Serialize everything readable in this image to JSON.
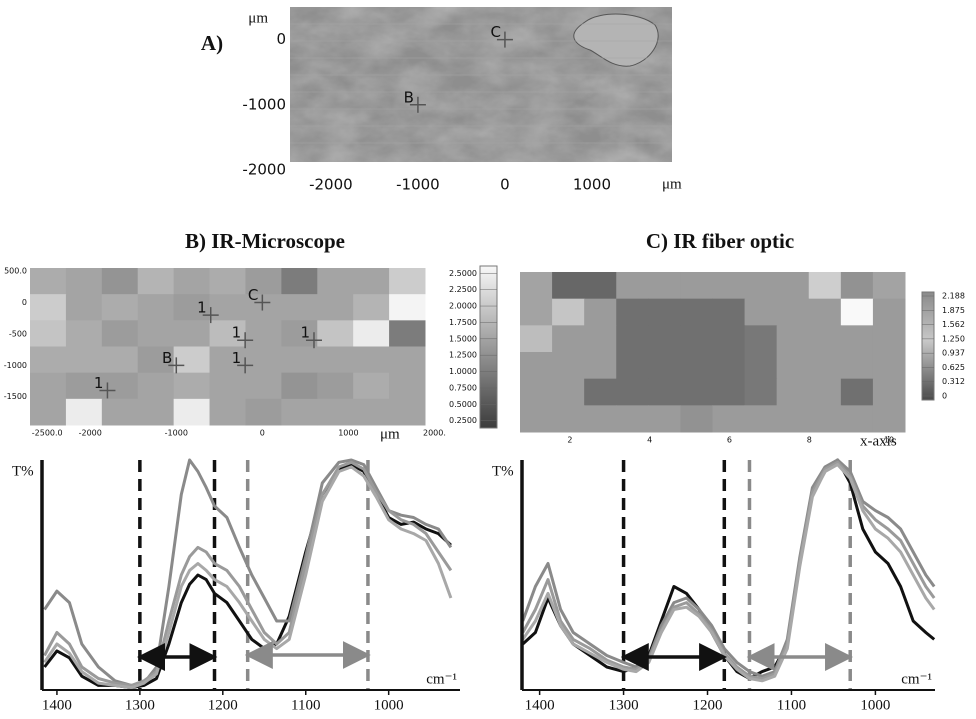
{
  "chart_data": [
    {
      "type": "image",
      "title": "A)",
      "xlabel": "μm",
      "ylabel": "μm",
      "xlim": [
        -2470,
        1920
      ],
      "ylim": [
        -2000,
        500
      ],
      "xticks": [
        -2000,
        -1000,
        0,
        1000
      ],
      "yticks": [
        0,
        -1000,
        -2000
      ],
      "markers": [
        {
          "label": "C",
          "x": 0,
          "y": 0
        },
        {
          "label": "B",
          "x": -1000,
          "y": -1000
        }
      ]
    },
    {
      "type": "heatmap",
      "title": "B) IR-Microscope",
      "xlabel": "μm",
      "xlim": [
        -2700,
        1890
      ],
      "ylim": [
        -1950,
        550
      ],
      "xticks": [
        {
          "value": -2500,
          "label": "-2500.0"
        },
        -2000,
        -1000,
        0,
        1000,
        {
          "value": 2000,
          "label": "2000."
        }
      ],
      "yticks": [
        {
          "value": 500,
          "label": "500.0"
        },
        0,
        -500,
        -1000,
        -1500
      ],
      "colormap": [
        "#3c3c3c",
        "#f8f8f8"
      ],
      "clim": [
        0.2,
        2.55
      ],
      "colorbar_ticks": [
        {
          "value": 2.5,
          "label": "2.5000"
        },
        {
          "value": 2.25,
          "label": "2.2500"
        },
        {
          "value": 2.0,
          "label": "2.0000"
        },
        {
          "value": 1.75,
          "label": "1.7500"
        },
        {
          "value": 1.5,
          "label": "1.5000"
        },
        {
          "value": 1.25,
          "label": "1.2500"
        },
        {
          "value": 1.0,
          "label": "1.0000"
        },
        {
          "value": 0.75,
          "label": "0.7500"
        },
        {
          "value": 0.5,
          "label": "0.5000"
        },
        {
          "value": 0.25,
          "label": "0.2500"
        }
      ],
      "values": [
        [
          1.6,
          1.5,
          1.3,
          1.7,
          1.5,
          1.6,
          1.4,
          1.0,
          1.5,
          1.5,
          2.0
        ],
        [
          2.0,
          1.5,
          1.6,
          1.5,
          1.4,
          1.5,
          1.5,
          1.5,
          1.5,
          1.7,
          2.5
        ],
        [
          1.9,
          1.6,
          1.4,
          1.5,
          1.5,
          1.8,
          1.5,
          1.4,
          1.9,
          2.4,
          1.0
        ],
        [
          1.6,
          1.6,
          1.6,
          1.4,
          2.0,
          1.5,
          1.5,
          1.5,
          1.5,
          1.5,
          1.5
        ],
        [
          1.5,
          1.4,
          1.4,
          1.5,
          1.6,
          1.5,
          1.5,
          1.3,
          1.4,
          1.6,
          1.5
        ],
        [
          1.5,
          2.4,
          1.5,
          1.5,
          2.4,
          1.5,
          1.4,
          1.5,
          1.5,
          1.5,
          1.5
        ]
      ],
      "markers": [
        {
          "label": "C",
          "x": 0,
          "y": 0
        },
        {
          "label": "B",
          "x": -1000,
          "y": -1000
        },
        {
          "label": "1",
          "x": -600,
          "y": -200
        },
        {
          "label": "1",
          "x": -200,
          "y": -600
        },
        {
          "label": "1",
          "x": -200,
          "y": -1000
        },
        {
          "label": "1",
          "x": 600,
          "y": -600
        },
        {
          "label": "1",
          "x": -1800,
          "y": -1400
        }
      ]
    },
    {
      "type": "heatmap",
      "title": "C) IR fiber optic",
      "xlabel": "x-axis",
      "xlim": [
        0.75,
        10.4
      ],
      "ylim": [
        0,
        6
      ],
      "xticks": [
        2,
        4,
        6,
        8,
        10
      ],
      "colormap": [
        "#3c3c3c",
        "#f8f8f8"
      ],
      "clim": [
        0,
        2.188
      ],
      "colorbar_ticks": [
        2.188,
        1.875,
        1.562,
        {
          "value": 1.25,
          "label": "1.250"
        },
        0.937,
        0.625,
        0.312,
        0
      ],
      "values": [
        [
          1.2,
          0.5,
          0.5,
          1.1,
          1.1,
          1.1,
          1.1,
          1.1,
          1.1,
          1.7,
          1.0,
          1.2
        ],
        [
          1.2,
          1.6,
          1.1,
          0.6,
          0.6,
          0.6,
          0.6,
          1.1,
          1.1,
          1.1,
          2.2,
          1.1
        ],
        [
          1.5,
          1.1,
          1.1,
          0.6,
          0.6,
          0.6,
          0.6,
          0.7,
          1.1,
          1.1,
          1.1,
          1.1
        ],
        [
          1.1,
          1.1,
          1.1,
          0.6,
          0.6,
          0.6,
          0.6,
          0.7,
          1.1,
          1.1,
          1.1,
          1.1
        ],
        [
          1.1,
          1.1,
          0.6,
          0.6,
          0.6,
          0.6,
          0.6,
          0.7,
          1.1,
          1.1,
          0.6,
          1.1
        ],
        [
          1.1,
          1.1,
          1.1,
          1.1,
          1.1,
          1.0,
          1.1,
          1.1,
          1.1,
          1.1,
          1.1,
          1.1
        ]
      ]
    },
    {
      "type": "line",
      "xlabel": "cm⁻¹",
      "ylabel": "T%",
      "xlim": [
        1418,
        914
      ],
      "ylim": [
        0,
        100
      ],
      "xticks": [
        1400,
        1300,
        1200,
        1100,
        1000
      ],
      "x": [
        1415,
        1400,
        1385,
        1370,
        1350,
        1330,
        1310,
        1295,
        1280,
        1265,
        1250,
        1240,
        1230,
        1220,
        1210,
        1195,
        1180,
        1165,
        1150,
        1135,
        1120,
        1100,
        1080,
        1060,
        1045,
        1030,
        1015,
        1000,
        985,
        970,
        955,
        940,
        925
      ],
      "series": [
        {
          "color": "#111111",
          "values": [
            10,
            17,
            14,
            6,
            2,
            2,
            1,
            2,
            5,
            20,
            38,
            46,
            50,
            48,
            42,
            38,
            30,
            22,
            18,
            20,
            32,
            60,
            85,
            96,
            98,
            95,
            85,
            75,
            72,
            73,
            70,
            68,
            63
          ]
        },
        {
          "color": "#8a8a8a",
          "values": [
            35,
            43,
            38,
            20,
            10,
            4,
            2,
            3,
            10,
            45,
            85,
            100,
            95,
            88,
            80,
            75,
            62,
            50,
            40,
            30,
            30,
            58,
            90,
            99,
            100,
            98,
            88,
            78,
            76,
            75,
            72,
            70,
            62
          ]
        },
        {
          "color": "#9a9a9a",
          "values": [
            15,
            25,
            20,
            10,
            5,
            3,
            2,
            4,
            8,
            30,
            50,
            58,
            62,
            60,
            55,
            52,
            45,
            35,
            25,
            20,
            25,
            55,
            85,
            97,
            99,
            96,
            86,
            78,
            74,
            72,
            68,
            60,
            52
          ]
        },
        {
          "color": "#a8a8a8",
          "values": [
            12,
            20,
            16,
            8,
            3,
            2,
            1,
            3,
            7,
            25,
            45,
            52,
            55,
            52,
            48,
            45,
            38,
            30,
            22,
            18,
            22,
            50,
            82,
            95,
            97,
            93,
            84,
            74,
            70,
            68,
            65,
            55,
            40
          ]
        }
      ],
      "vlines": [
        {
          "x": 1300,
          "color": "#111111"
        },
        {
          "x": 1210,
          "color": "#111111"
        },
        {
          "x": 1170,
          "color": "#8a8a8a"
        },
        {
          "x": 1025,
          "color": "#8a8a8a"
        }
      ],
      "arrows": [
        {
          "from": 1295,
          "to": 1215,
          "color": "#111111"
        },
        {
          "from": 1165,
          "to": 1030,
          "color": "#8a8a8a"
        }
      ]
    },
    {
      "type": "line",
      "xlabel": "cm⁻¹",
      "ylabel": "T%",
      "xlim": [
        1421,
        929
      ],
      "ylim": [
        0,
        100
      ],
      "xticks": [
        1400,
        1300,
        1200,
        1100,
        1000
      ],
      "x": [
        1420,
        1405,
        1390,
        1375,
        1360,
        1340,
        1320,
        1300,
        1285,
        1270,
        1255,
        1240,
        1225,
        1210,
        1195,
        1180,
        1165,
        1150,
        1135,
        1120,
        1105,
        1090,
        1075,
        1060,
        1045,
        1030,
        1015,
        1000,
        985,
        970,
        955,
        940,
        930
      ],
      "series": [
        {
          "color": "#111111",
          "values": [
            20,
            25,
            40,
            28,
            20,
            15,
            10,
            8,
            10,
            15,
            30,
            45,
            42,
            35,
            25,
            15,
            8,
            5,
            8,
            10,
            20,
            55,
            85,
            95,
            100,
            90,
            70,
            60,
            55,
            45,
            30,
            25,
            22
          ]
        },
        {
          "color": "#8a8a8a",
          "values": [
            30,
            45,
            55,
            35,
            25,
            20,
            15,
            12,
            10,
            14,
            28,
            38,
            40,
            35,
            28,
            18,
            12,
            8,
            6,
            8,
            22,
            58,
            88,
            97,
            100,
            95,
            82,
            78,
            75,
            70,
            60,
            50,
            45
          ]
        },
        {
          "color": "#9a9a9a",
          "values": [
            25,
            35,
            48,
            30,
            22,
            18,
            13,
            10,
            9,
            13,
            26,
            36,
            38,
            33,
            26,
            16,
            10,
            6,
            5,
            7,
            20,
            56,
            86,
            96,
            99,
            93,
            80,
            74,
            70,
            65,
            55,
            45,
            40
          ]
        },
        {
          "color": "#a8a8a8",
          "values": [
            22,
            30,
            42,
            28,
            20,
            16,
            12,
            9,
            8,
            12,
            25,
            35,
            36,
            32,
            25,
            15,
            9,
            5,
            4,
            6,
            18,
            54,
            84,
            95,
            98,
            92,
            78,
            70,
            66,
            60,
            50,
            40,
            35
          ]
        }
      ],
      "vlines": [
        {
          "x": 1300,
          "color": "#111111"
        },
        {
          "x": 1180,
          "color": "#111111"
        },
        {
          "x": 1150,
          "color": "#8a8a8a"
        },
        {
          "x": 1030,
          "color": "#8a8a8a"
        }
      ],
      "arrows": [
        {
          "from": 1295,
          "to": 1185,
          "color": "#111111"
        },
        {
          "from": 1145,
          "to": 1035,
          "color": "#8a8a8a"
        }
      ]
    }
  ]
}
